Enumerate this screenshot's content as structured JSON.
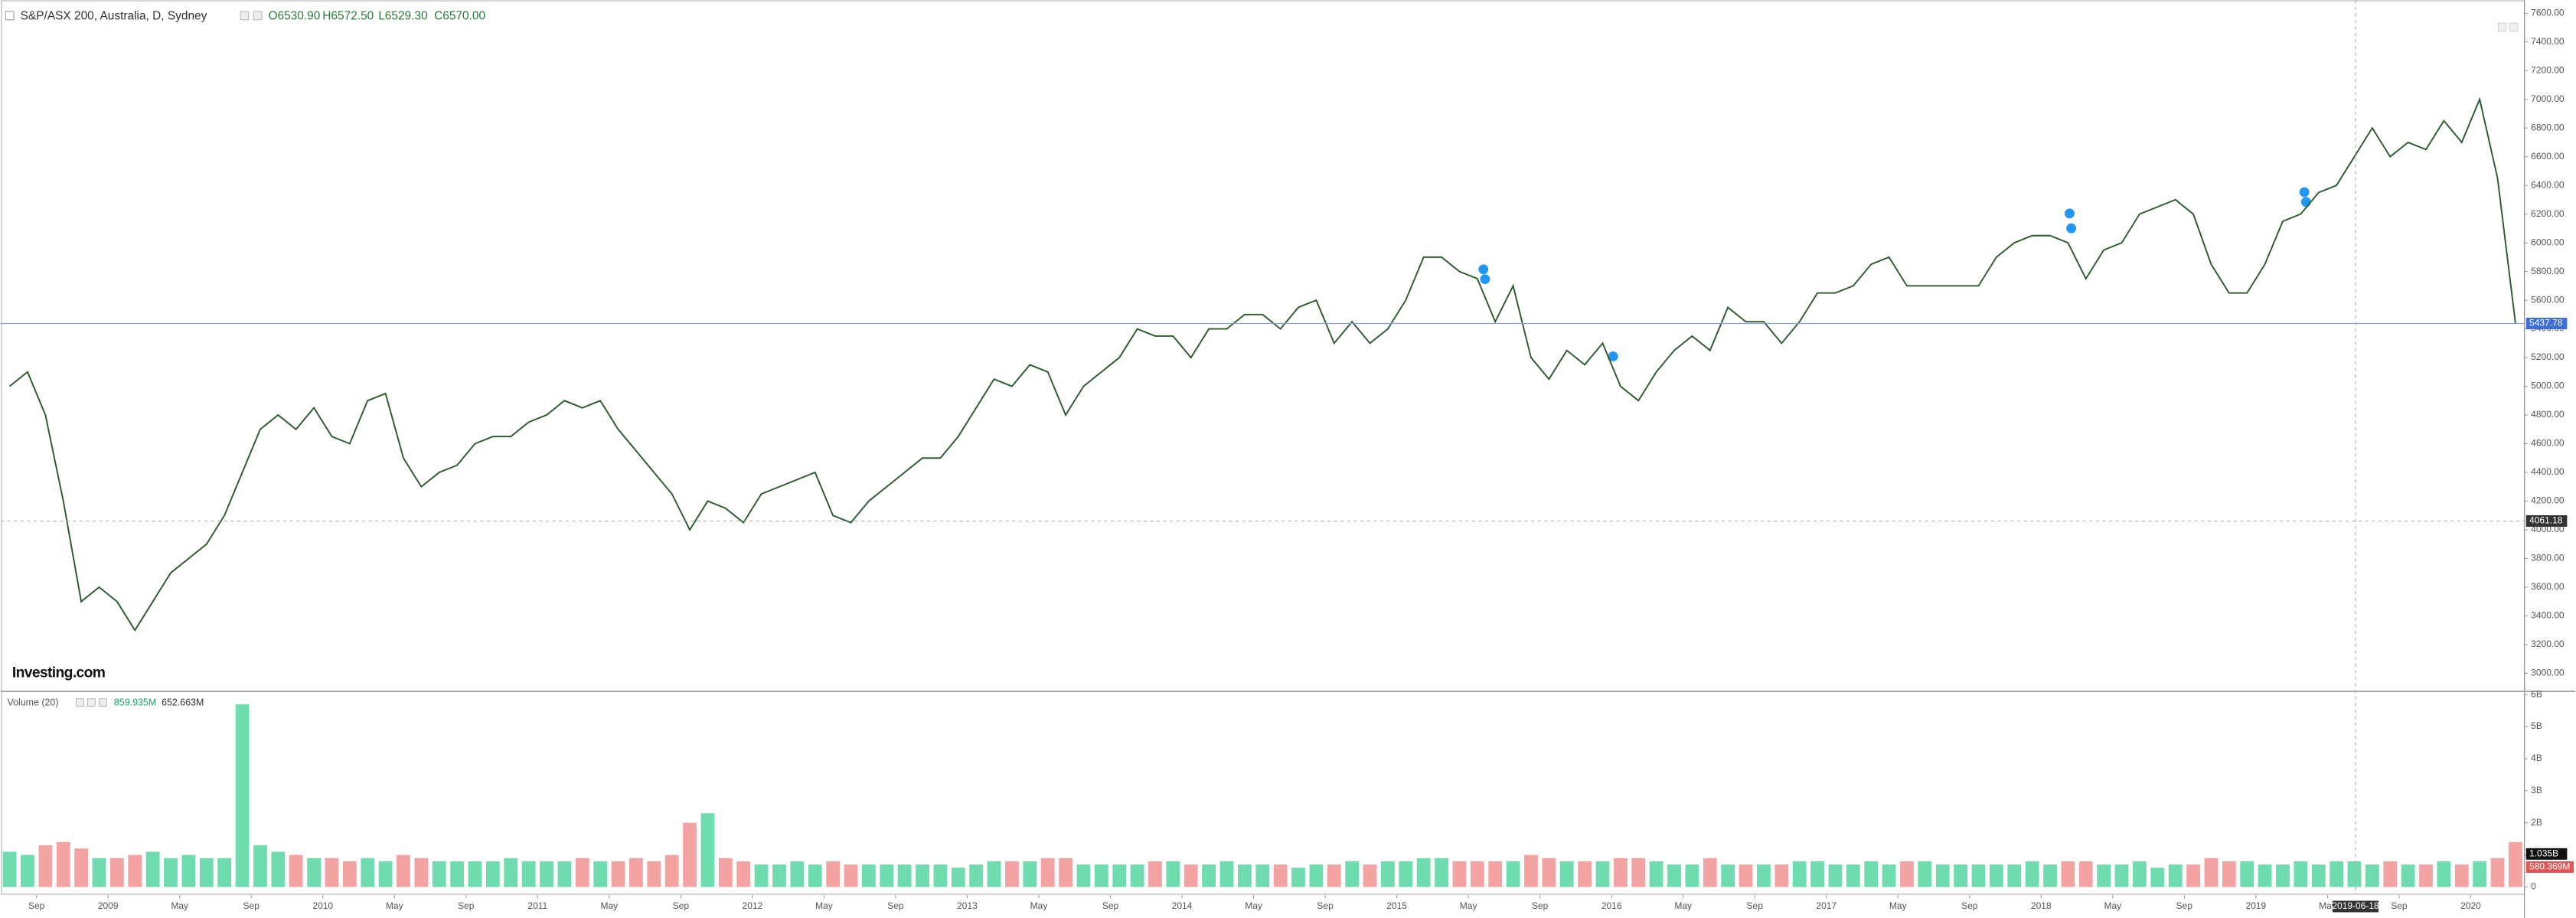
{
  "chart_data": [
    {
      "type": "line",
      "header": {
        "title": "S&P/ASX 200, Australia, D, Sydney",
        "open": "O6530.90",
        "high": "H6572.50",
        "low": "L6529.30",
        "close": "C6570.00"
      },
      "brand": "Investing.com",
      "color": "#2c5b2e",
      "x": [
        "2008-07",
        "2008-08",
        "2008-09",
        "2008-10",
        "2008-11",
        "2008-12",
        "2009-01",
        "2009-02",
        "2009-03",
        "2009-04",
        "2009-05",
        "2009-06",
        "2009-07",
        "2009-08",
        "2009-09",
        "2009-10",
        "2009-11",
        "2009-12",
        "2010-01",
        "2010-02",
        "2010-03",
        "2010-04",
        "2010-05",
        "2010-06",
        "2010-07",
        "2010-08",
        "2010-09",
        "2010-10",
        "2010-11",
        "2010-12",
        "2011-01",
        "2011-02",
        "2011-03",
        "2011-04",
        "2011-05",
        "2011-06",
        "2011-07",
        "2011-08",
        "2011-09",
        "2011-10",
        "2011-11",
        "2011-12",
        "2012-01",
        "2012-02",
        "2012-03",
        "2012-04",
        "2012-05",
        "2012-06",
        "2012-07",
        "2012-08",
        "2012-09",
        "2012-10",
        "2012-11",
        "2012-12",
        "2013-01",
        "2013-02",
        "2013-03",
        "2013-04",
        "2013-05",
        "2013-06",
        "2013-07",
        "2013-08",
        "2013-09",
        "2013-10",
        "2013-11",
        "2013-12",
        "2014-01",
        "2014-02",
        "2014-03",
        "2014-04",
        "2014-05",
        "2014-06",
        "2014-07",
        "2014-08",
        "2014-09",
        "2014-10",
        "2014-11",
        "2014-12",
        "2015-01",
        "2015-02",
        "2015-03",
        "2015-04",
        "2015-05",
        "2015-06",
        "2015-07",
        "2015-08",
        "2015-09",
        "2015-10",
        "2015-11",
        "2015-12",
        "2016-01",
        "2016-02",
        "2016-03",
        "2016-04",
        "2016-05",
        "2016-06",
        "2016-07",
        "2016-08",
        "2016-09",
        "2016-10",
        "2016-11",
        "2016-12",
        "2017-01",
        "2017-02",
        "2017-03",
        "2017-04",
        "2017-05",
        "2017-06",
        "2017-07",
        "2017-08",
        "2017-09",
        "2017-10",
        "2017-11",
        "2017-12",
        "2018-01",
        "2018-02",
        "2018-03",
        "2018-04",
        "2018-05",
        "2018-06",
        "2018-07",
        "2018-08",
        "2018-09",
        "2018-10",
        "2018-11",
        "2018-12",
        "2019-01",
        "2019-02",
        "2019-03",
        "2019-04",
        "2019-05",
        "2019-06",
        "2019-07",
        "2019-08",
        "2019-09",
        "2019-10",
        "2019-11",
        "2019-12",
        "2020-01",
        "2020-02",
        "2020-03"
      ],
      "values": [
        5000,
        5100,
        4800,
        4200,
        3500,
        3600,
        3500,
        3300,
        3500,
        3700,
        3800,
        3900,
        4100,
        4400,
        4700,
        4800,
        4700,
        4850,
        4650,
        4600,
        4900,
        4950,
        4500,
        4300,
        4400,
        4450,
        4600,
        4650,
        4650,
        4750,
        4800,
        4900,
        4850,
        4900,
        4700,
        4550,
        4400,
        4250,
        4000,
        4200,
        4150,
        4050,
        4250,
        4300,
        4350,
        4400,
        4100,
        4050,
        4200,
        4300,
        4400,
        4500,
        4500,
        4650,
        4850,
        5050,
        5000,
        5150,
        5100,
        4800,
        5000,
        5100,
        5200,
        5400,
        5350,
        5350,
        5200,
        5400,
        5400,
        5500,
        5500,
        5400,
        5550,
        5600,
        5300,
        5450,
        5300,
        5400,
        5600,
        5900,
        5900,
        5800,
        5750,
        5450,
        5700,
        5200,
        5050,
        5250,
        5150,
        5300,
        5000,
        4900,
        5100,
        5250,
        5350,
        5250,
        5550,
        5450,
        5450,
        5300,
        5450,
        5650,
        5650,
        5700,
        5850,
        5900,
        5700,
        5700,
        5700,
        5700,
        5700,
        5900,
        6000,
        6050,
        6050,
        6000,
        5750,
        5950,
        6000,
        6200,
        6250,
        6300,
        6200,
        5850,
        5650,
        5650,
        5850,
        6150,
        6200,
        6350,
        6400,
        6600,
        6800,
        6600,
        6700,
        6650,
        6850,
        6700,
        7000,
        6450,
        5440
      ],
      "xlim": [
        "2008-07",
        "2020-04"
      ],
      "xticks": [
        {
          "value": "2008-09",
          "label": "Sep"
        },
        {
          "value": "2009-01",
          "label": "2009"
        },
        {
          "value": "2009-05",
          "label": "May"
        },
        {
          "value": "2009-09",
          "label": "Sep"
        },
        {
          "value": "2010-01",
          "label": "2010"
        },
        {
          "value": "2010-05",
          "label": "May"
        },
        {
          "value": "2010-09",
          "label": "Sep"
        },
        {
          "value": "2011-01",
          "label": "2011"
        },
        {
          "value": "2011-05",
          "label": "May"
        },
        {
          "value": "2011-09",
          "label": "Sep"
        },
        {
          "value": "2012-01",
          "label": "2012"
        },
        {
          "value": "2012-05",
          "label": "May"
        },
        {
          "value": "2012-09",
          "label": "Sep"
        },
        {
          "value": "2013-01",
          "label": "2013"
        },
        {
          "value": "2013-05",
          "label": "May"
        },
        {
          "value": "2013-09",
          "label": "Sep"
        },
        {
          "value": "2014-01",
          "label": "2014"
        },
        {
          "value": "2014-05",
          "label": "May"
        },
        {
          "value": "2014-09",
          "label": "Sep"
        },
        {
          "value": "2015-01",
          "label": "2015"
        },
        {
          "value": "2015-05",
          "label": "May"
        },
        {
          "value": "2015-09",
          "label": "Sep"
        },
        {
          "value": "2016-01",
          "label": "2016"
        },
        {
          "value": "2016-05",
          "label": "May"
        },
        {
          "value": "2016-09",
          "label": "Sep"
        },
        {
          "value": "2017-01",
          "label": "2017"
        },
        {
          "value": "2017-05",
          "label": "May"
        },
        {
          "value": "2017-09",
          "label": "Sep"
        },
        {
          "value": "2018-01",
          "label": "2018"
        },
        {
          "value": "2018-05",
          "label": "May"
        },
        {
          "value": "2018-09",
          "label": "Sep"
        },
        {
          "value": "2019-01",
          "label": "2019"
        },
        {
          "value": "2019-05",
          "label": "May"
        },
        {
          "value": "2019-09",
          "label": "Sep"
        },
        {
          "value": "2020-01",
          "label": "2020"
        }
      ],
      "ylim": [
        2874,
        7692
      ],
      "yticks": [
        {
          "value": 3000,
          "label": "3000.00"
        },
        {
          "value": 3200,
          "label": "3200.00"
        },
        {
          "value": 3400,
          "label": "3400.00"
        },
        {
          "value": 3600,
          "label": "3600.00"
        },
        {
          "value": 3800,
          "label": "3800.00"
        },
        {
          "value": 4000,
          "label": "4000.00"
        },
        {
          "value": 4200,
          "label": "4200.00"
        },
        {
          "value": 4400,
          "label": "4400.00"
        },
        {
          "value": 4600,
          "label": "4600.00"
        },
        {
          "value": 4800,
          "label": "4800.00"
        },
        {
          "value": 5000,
          "label": "5000.00"
        },
        {
          "value": 5200,
          "label": "5200.00"
        },
        {
          "value": 5400,
          "label": "5400.00"
        },
        {
          "value": 5600,
          "label": "5600.00"
        },
        {
          "value": 5800,
          "label": "5800.00"
        },
        {
          "value": 6000,
          "label": "6000.00"
        },
        {
          "value": 6200,
          "label": "6200.00"
        },
        {
          "value": 6400,
          "label": "6400.00"
        },
        {
          "value": 6600,
          "label": "6600.00"
        },
        {
          "value": 6800,
          "label": "6800.00"
        },
        {
          "value": 7000,
          "label": "7000.00"
        },
        {
          "value": 7200,
          "label": "7200.00"
        },
        {
          "value": 7400,
          "label": "7400.00"
        },
        {
          "value": 7600,
          "label": "7600.00"
        }
      ],
      "grid": false,
      "last_price": 5437.78,
      "crosshair_price": 4061.18,
      "crosshair_date": "2019-06-18"
    },
    {
      "type": "bar",
      "header": {
        "title": "Volume (20)",
        "value": "859.935M",
        "average": "652.663M"
      },
      "up_color": "#6fdcb0",
      "down_color": "#f4a3a3",
      "values": [
        1.1,
        1.0,
        1.3,
        1.4,
        1.2,
        0.9,
        0.9,
        1.0,
        1.1,
        0.9,
        1.0,
        0.9,
        0.9,
        5.7,
        1.3,
        1.1,
        1.0,
        0.9,
        0.9,
        0.8,
        0.9,
        0.8,
        1.0,
        0.9,
        0.8,
        0.8,
        0.8,
        0.8,
        0.9,
        0.8,
        0.8,
        0.8,
        0.9,
        0.8,
        0.8,
        0.9,
        0.8,
        1.0,
        2.0,
        2.3,
        0.9,
        0.8,
        0.7,
        0.7,
        0.8,
        0.7,
        0.8,
        0.7,
        0.7,
        0.7,
        0.7,
        0.7,
        0.7,
        0.6,
        0.7,
        0.8,
        0.8,
        0.8,
        0.9,
        0.9,
        0.7,
        0.7,
        0.7,
        0.7,
        0.8,
        0.8,
        0.7,
        0.7,
        0.8,
        0.7,
        0.7,
        0.7,
        0.6,
        0.7,
        0.7,
        0.8,
        0.7,
        0.8,
        0.8,
        0.9,
        0.9,
        0.8,
        0.8,
        0.8,
        0.8,
        1.0,
        0.9,
        0.8,
        0.8,
        0.8,
        0.9,
        0.9,
        0.8,
        0.7,
        0.7,
        0.9,
        0.7,
        0.7,
        0.7,
        0.7,
        0.8,
        0.8,
        0.7,
        0.7,
        0.8,
        0.7,
        0.8,
        0.8,
        0.7,
        0.7,
        0.7,
        0.7,
        0.7,
        0.8,
        0.7,
        0.8,
        0.8,
        0.7,
        0.7,
        0.8,
        0.6,
        0.7,
        0.7,
        0.9,
        0.8,
        0.8,
        0.7,
        0.7,
        0.8,
        0.7,
        0.8,
        0.8,
        0.7,
        0.8,
        0.7,
        0.7,
        0.8,
        0.7,
        0.8,
        0.9,
        1.4
      ],
      "ylim": [
        -0.25,
        6.1
      ],
      "yticks": [
        0,
        {
          "value": 1,
          "label": "1B"
        },
        {
          "value": 2,
          "label": "2B"
        },
        {
          "value": 3,
          "label": "3B"
        },
        {
          "value": 4,
          "label": "4B"
        },
        {
          "value": 5,
          "label": "5B"
        },
        {
          "value": 6,
          "label": "6B"
        }
      ],
      "last_value_label": "1.035B",
      "last_average_label": "580.369M"
    }
  ]
}
